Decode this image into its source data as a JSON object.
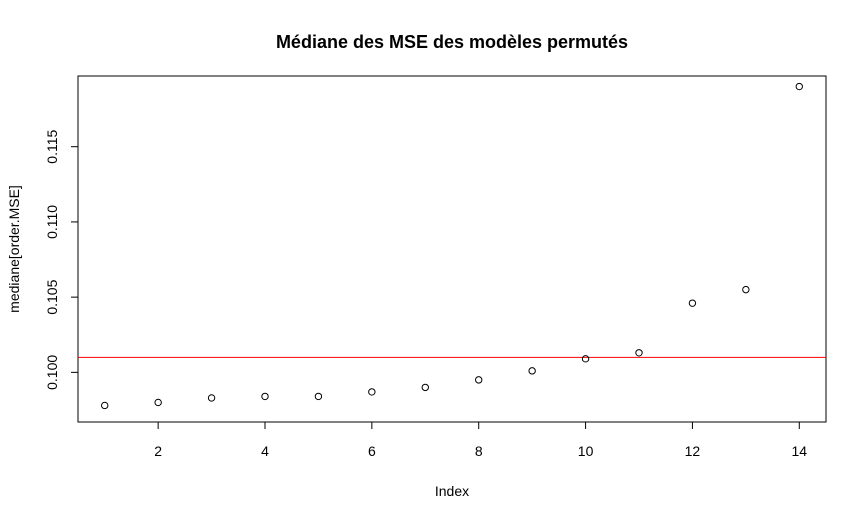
{
  "chart_data": {
    "type": "scatter",
    "title": "Médiane des MSE des modèles permutés",
    "xlabel": "Index",
    "ylabel": "mediane[order.MSE]",
    "xlim": [
      0.5,
      14.5
    ],
    "ylim": [
      0.0967,
      0.1197
    ],
    "xticks": [
      2,
      4,
      6,
      8,
      10,
      12,
      14
    ],
    "yticks": [
      0.1,
      0.105,
      0.11,
      0.115
    ],
    "ytick_labels": [
      "0.100",
      "0.105",
      "0.110",
      "0.115"
    ],
    "x": [
      1,
      2,
      3,
      4,
      5,
      6,
      7,
      8,
      9,
      10,
      11,
      12,
      13,
      14
    ],
    "y": [
      0.0978,
      0.098,
      0.0983,
      0.0984,
      0.0984,
      0.0987,
      0.099,
      0.0995,
      0.1001,
      0.1009,
      0.1013,
      0.1046,
      0.1055,
      0.119
    ],
    "hline": {
      "y": 0.101,
      "color": "#ff0000"
    },
    "marker": "open-circle",
    "point_color": "#000000",
    "grid": false,
    "legend": "none"
  }
}
